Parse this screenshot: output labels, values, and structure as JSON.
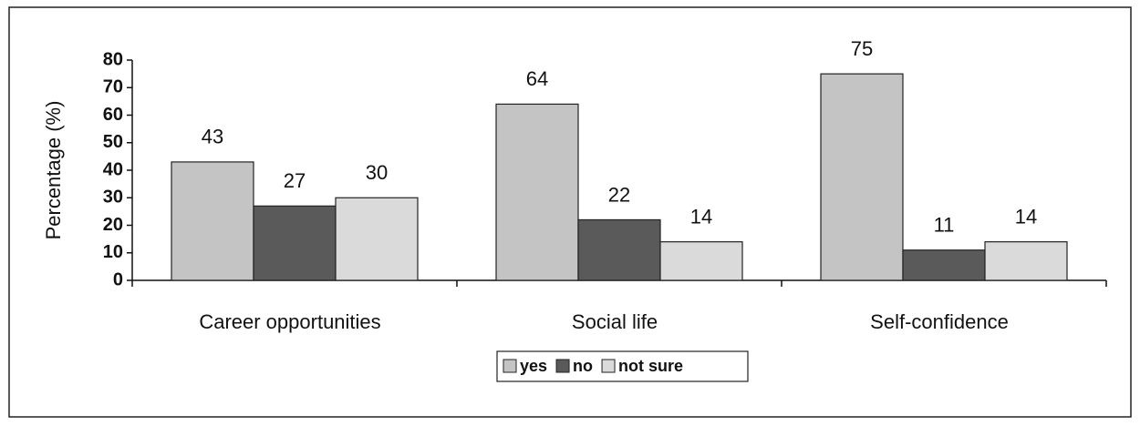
{
  "chart_data": {
    "type": "bar",
    "y_label": "Percentage (%)",
    "categories": [
      "Career opportunities",
      "Social life",
      "Self-confidence"
    ],
    "series": [
      {
        "name": "yes",
        "color": "#c4c4c4",
        "values": [
          43,
          64,
          75
        ]
      },
      {
        "name": "no",
        "color": "#5a5a5a",
        "values": [
          27,
          22,
          11
        ]
      },
      {
        "name": "not sure",
        "color": "#dadada",
        "values": [
          30,
          14,
          14
        ]
      }
    ],
    "ylim": [
      0,
      80
    ],
    "yticks": [
      0,
      10,
      20,
      30,
      40,
      50,
      60,
      70,
      80
    ],
    "grid": false,
    "legend": "bottom"
  }
}
